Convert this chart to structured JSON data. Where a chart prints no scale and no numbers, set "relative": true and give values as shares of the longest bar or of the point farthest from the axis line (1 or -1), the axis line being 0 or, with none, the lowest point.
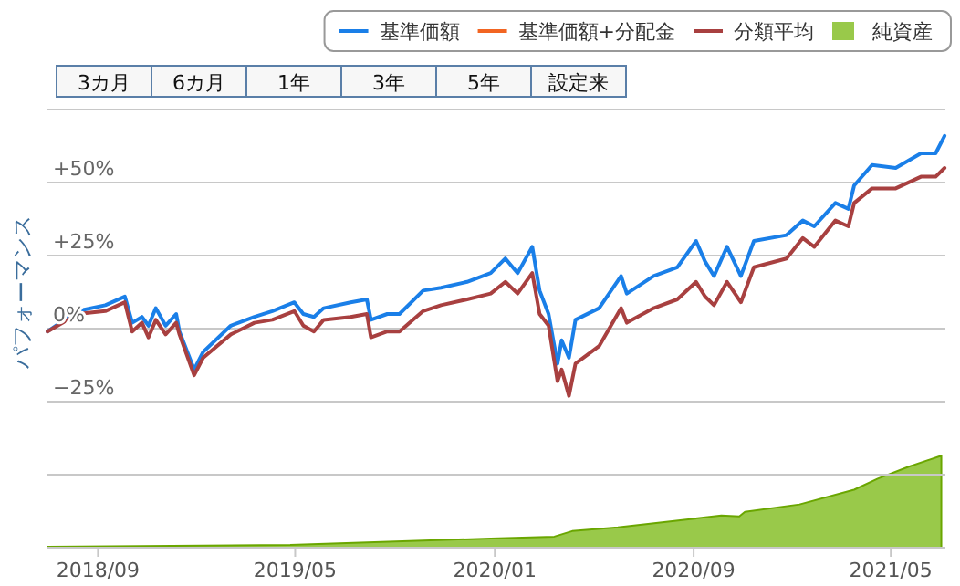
{
  "chart_data": [
    {
      "type": "line",
      "ylabel": "パフォーマンス",
      "annotations": [
        "3カ月",
        "6カ月",
        "1年",
        "3年",
        "5年",
        "設定来"
      ],
      "x": [
        "2018-07-01",
        "2018-08-07",
        "2018-09-10",
        "2018-10-04",
        "2018-10-13",
        "2018-10-25",
        "2018-11-02",
        "2018-11-11",
        "2018-11-23",
        "2018-12-06",
        "2018-12-10",
        "2018-12-28",
        "2019-01-08",
        "2019-02-11",
        "2019-03-12",
        "2019-04-03",
        "2019-04-30",
        "2019-05-11",
        "2019-05-24",
        "2019-06-05",
        "2019-07-08",
        "2019-07-28",
        "2019-08-02",
        "2019-08-22",
        "2019-09-06",
        "2019-10-05",
        "2019-10-27",
        "2019-11-28",
        "2019-12-27",
        "2020-01-14",
        "2020-01-29",
        "2020-02-16",
        "2020-02-25",
        "2020-03-07",
        "2020-03-18",
        "2020-03-23",
        "2020-04-01",
        "2020-04-09",
        "2020-05-08",
        "2020-06-04",
        "2020-06-11",
        "2020-07-14",
        "2020-08-12",
        "2020-09-04",
        "2020-09-15",
        "2020-09-26",
        "2020-10-12",
        "2020-10-29",
        "2020-11-14",
        "2020-12-24",
        "2021-01-13",
        "2021-01-27",
        "2021-02-22",
        "2021-03-10",
        "2021-03-17",
        "2021-04-08",
        "2021-05-07",
        "2021-06-07",
        "2021-06-25",
        "2021-07-06"
      ],
      "series": [
        {
          "name": "基準価額",
          "color": "#1a7fe8",
          "values": [
            -1,
            6,
            8,
            11,
            2,
            4,
            1,
            7,
            1,
            5,
            -1,
            -14,
            -8,
            1,
            4,
            6,
            9,
            5,
            4,
            7,
            9,
            10,
            3,
            5,
            5,
            13,
            14,
            16,
            19,
            24,
            19,
            28,
            13,
            5,
            -12,
            -4,
            -10,
            3,
            7,
            18,
            12,
            18,
            21,
            30,
            23,
            18,
            28,
            18,
            30,
            32,
            37,
            35,
            43,
            41,
            49,
            56,
            55,
            60,
            60,
            66
          ]
        },
        {
          "name": "基準価額+分配金",
          "color": "#f26522",
          "values": [
            null,
            null,
            null,
            null,
            null,
            null,
            null,
            null,
            null,
            null,
            null,
            null,
            null,
            null,
            null,
            null,
            null,
            null,
            null,
            null,
            null,
            null,
            null,
            null,
            null,
            null,
            null,
            null,
            null,
            null,
            null,
            null,
            null,
            null,
            null,
            null,
            null,
            null,
            null,
            null,
            null,
            null,
            null,
            null,
            null,
            null,
            null,
            null,
            null,
            null,
            null,
            null,
            null,
            null,
            null,
            null,
            null,
            null,
            null,
            null
          ]
        },
        {
          "name": "分類平均",
          "color": "#a84040",
          "values": [
            -1,
            5,
            6,
            9,
            -1,
            2,
            -3,
            3,
            -2,
            2,
            -2,
            -16,
            -10,
            -2,
            2,
            3,
            6,
            1,
            -1,
            3,
            4,
            5,
            -3,
            -1,
            -1,
            6,
            8,
            10,
            12,
            16,
            12,
            19,
            5,
            1,
            -18,
            -14,
            -23,
            -12,
            -6,
            7,
            2,
            7,
            10,
            16,
            11,
            8,
            16,
            9,
            21,
            24,
            31,
            28,
            37,
            35,
            43,
            48,
            48,
            52,
            52,
            55
          ]
        }
      ],
      "xlim": [
        "2018-07-01",
        "2021-07-07"
      ],
      "xticks": [
        {
          "value": "2018-09-01",
          "label": "2018/09"
        },
        {
          "value": "2019-05-01",
          "label": "2019/05"
        },
        {
          "value": "2020-01-01",
          "label": "2020/01"
        },
        {
          "value": "2020-09-01",
          "label": "2020/09"
        },
        {
          "value": "2021-05-01",
          "label": "2021/05"
        }
      ],
      "ylim": [
        -75,
        75
      ],
      "yticks": [
        {
          "value": 75,
          "label": null
        },
        {
          "value": 50,
          "label": "+50%"
        },
        {
          "value": 25,
          "label": "+25%"
        },
        {
          "value": 0,
          "label": "0%"
        },
        {
          "value": -25,
          "label": "−25%"
        },
        {
          "value": -50,
          "label": null
        },
        {
          "value": -75,
          "label": null
        }
      ],
      "grid": "y",
      "legend": "top right",
      "line_style": "solid",
      "marker": "none"
    },
    {
      "type": "area",
      "relative": true,
      "x": [
        "2018-07-01",
        "2019-04-25",
        "2019-12-27",
        "2020-03-14",
        "2020-04-05",
        "2020-05-31",
        "2020-08-28",
        "2020-10-05",
        "2020-10-27",
        "2020-11-03",
        "2021-01-09",
        "2021-03-17",
        "2021-04-15",
        "2021-05-23",
        "2021-07-02"
      ],
      "xlim": [
        "2018-07-01",
        "2021-07-07"
      ],
      "series": [
        {
          "name": "純資産",
          "color": "#99c94a",
          "values": [
            0.01,
            0.03,
            0.1,
            0.12,
            0.18,
            0.22,
            0.31,
            0.35,
            0.34,
            0.39,
            0.47,
            0.63,
            0.75,
            0.88,
            1
          ]
        }
      ]
    }
  ]
}
